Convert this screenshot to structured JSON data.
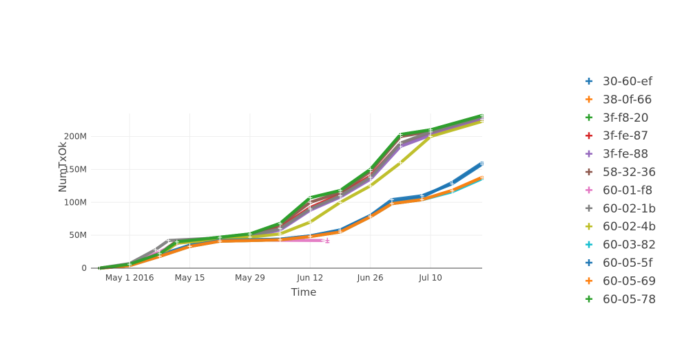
{
  "chart_data": {
    "type": "scatter",
    "xlabel": "Time",
    "ylabel": "NumTxOk",
    "x_ticks": [
      "May 1 2016",
      "May 15",
      "May 29",
      "Jun 12",
      "Jun 26",
      "Jul 10"
    ],
    "y_ticks": [
      "0",
      "50M",
      "100M",
      "150M",
      "200M"
    ],
    "xlim": [
      "2016-04-22",
      "2016-07-22"
    ],
    "ylim": [
      0,
      235000000
    ],
    "grid": true,
    "legend_position": "right",
    "series": [
      {
        "name": "30-60-ef",
        "color": "#1f77b4",
        "points": [
          [
            "2016-04-24",
            0
          ],
          [
            "2016-05-01",
            5000000
          ],
          [
            "2016-05-08",
            20000000
          ],
          [
            "2016-05-15",
            35000000
          ],
          [
            "2016-05-22",
            42000000
          ],
          [
            "2016-06-05",
            44000000
          ],
          [
            "2016-06-12",
            49000000
          ],
          [
            "2016-06-19",
            58000000
          ],
          [
            "2016-06-26",
            80000000
          ],
          [
            "2016-07-01",
            100000000
          ],
          [
            "2016-07-08",
            108000000
          ],
          [
            "2016-07-15",
            130000000
          ],
          [
            "2016-07-22",
            160000000
          ]
        ]
      },
      {
        "name": "38-0f-66",
        "color": "#ff7f0e",
        "points": [
          [
            "2016-04-24",
            0
          ],
          [
            "2016-05-01",
            4000000
          ],
          [
            "2016-05-08",
            18000000
          ],
          [
            "2016-05-15",
            33000000
          ],
          [
            "2016-05-22",
            41000000
          ],
          [
            "2016-06-05",
            43000000
          ],
          [
            "2016-06-12",
            48000000
          ],
          [
            "2016-06-19",
            55000000
          ],
          [
            "2016-06-26",
            78000000
          ],
          [
            "2016-07-01",
            98000000
          ],
          [
            "2016-07-08",
            104000000
          ],
          [
            "2016-07-15",
            118000000
          ],
          [
            "2016-07-22",
            138000000
          ]
        ]
      },
      {
        "name": "3f-f8-20",
        "color": "#2ca02c",
        "points": [
          [
            "2016-04-24",
            0
          ],
          [
            "2016-05-01",
            6000000
          ],
          [
            "2016-05-08",
            22000000
          ],
          [
            "2016-05-12",
            40000000
          ],
          [
            "2016-05-22",
            47000000
          ],
          [
            "2016-05-29",
            52000000
          ],
          [
            "2016-06-05",
            68000000
          ],
          [
            "2016-06-12",
            107000000
          ],
          [
            "2016-06-19",
            118000000
          ],
          [
            "2016-06-26",
            150000000
          ],
          [
            "2016-07-03",
            203000000
          ],
          [
            "2016-07-10",
            210000000
          ],
          [
            "2016-07-22",
            232000000
          ]
        ]
      },
      {
        "name": "3f-fe-87",
        "color": "#d62728",
        "points": [
          [
            "2016-04-24",
            0
          ],
          [
            "2016-05-01",
            6000000
          ],
          [
            "2016-05-08",
            22000000
          ],
          [
            "2016-05-12",
            40000000
          ],
          [
            "2016-05-22",
            46000000
          ],
          [
            "2016-05-29",
            50000000
          ],
          [
            "2016-06-05",
            62000000
          ],
          [
            "2016-06-12",
            92000000
          ],
          [
            "2016-06-19",
            112000000
          ],
          [
            "2016-06-26",
            140000000
          ],
          [
            "2016-07-03",
            190000000
          ],
          [
            "2016-07-10",
            205000000
          ],
          [
            "2016-07-22",
            228000000
          ]
        ]
      },
      {
        "name": "3f-fe-88",
        "color": "#9467bd",
        "points": [
          [
            "2016-04-24",
            0
          ],
          [
            "2016-05-01",
            5000000
          ],
          [
            "2016-05-08",
            20000000
          ],
          [
            "2016-05-12",
            38000000
          ],
          [
            "2016-05-22",
            45000000
          ],
          [
            "2016-05-29",
            48000000
          ],
          [
            "2016-06-05",
            58000000
          ],
          [
            "2016-06-12",
            88000000
          ],
          [
            "2016-06-19",
            108000000
          ],
          [
            "2016-06-26",
            135000000
          ],
          [
            "2016-07-03",
            185000000
          ],
          [
            "2016-07-10",
            202000000
          ],
          [
            "2016-07-22",
            226000000
          ]
        ]
      },
      {
        "name": "58-32-36",
        "color": "#8c564b",
        "points": [
          [
            "2016-04-24",
            0
          ],
          [
            "2016-05-01",
            6000000
          ],
          [
            "2016-05-08",
            23000000
          ],
          [
            "2016-05-12",
            41000000
          ],
          [
            "2016-05-22",
            46000000
          ],
          [
            "2016-05-29",
            51000000
          ],
          [
            "2016-06-05",
            66000000
          ],
          [
            "2016-06-12",
            100000000
          ],
          [
            "2016-06-19",
            115000000
          ],
          [
            "2016-06-26",
            147000000
          ],
          [
            "2016-07-03",
            200000000
          ],
          [
            "2016-07-10",
            208000000
          ],
          [
            "2016-07-22",
            231000000
          ]
        ]
      },
      {
        "name": "60-01-f8",
        "color": "#e377c2",
        "points": [
          [
            "2016-04-24",
            0
          ],
          [
            "2016-05-01",
            5000000
          ],
          [
            "2016-05-08",
            25000000
          ],
          [
            "2016-05-13",
            40000000
          ],
          [
            "2016-05-18",
            43000000
          ],
          [
            "2016-06-15",
            42000000
          ]
        ]
      },
      {
        "name": "60-02-1b",
        "color": "#7f7f7f",
        "points": [
          [
            "2016-04-24",
            0
          ],
          [
            "2016-05-01",
            7000000
          ],
          [
            "2016-05-07",
            28000000
          ],
          [
            "2016-05-10",
            42000000
          ],
          [
            "2016-05-22",
            46000000
          ],
          [
            "2016-05-29",
            49000000
          ],
          [
            "2016-06-05",
            60000000
          ],
          [
            "2016-06-12",
            90000000
          ],
          [
            "2016-06-19",
            110000000
          ],
          [
            "2016-06-26",
            138000000
          ],
          [
            "2016-07-03",
            190000000
          ],
          [
            "2016-07-10",
            207000000
          ],
          [
            "2016-07-22",
            230000000
          ]
        ]
      },
      {
        "name": "60-02-4b",
        "color": "#bcbd22",
        "points": [
          [
            "2016-04-24",
            0
          ],
          [
            "2016-05-01",
            5000000
          ],
          [
            "2016-05-08",
            20000000
          ],
          [
            "2016-05-12",
            38000000
          ],
          [
            "2016-05-22",
            44000000
          ],
          [
            "2016-05-29",
            47000000
          ],
          [
            "2016-06-05",
            52000000
          ],
          [
            "2016-06-12",
            70000000
          ],
          [
            "2016-06-19",
            100000000
          ],
          [
            "2016-06-26",
            125000000
          ],
          [
            "2016-07-03",
            160000000
          ],
          [
            "2016-07-10",
            200000000
          ],
          [
            "2016-07-22",
            223000000
          ]
        ]
      },
      {
        "name": "60-03-82",
        "color": "#17becf",
        "points": [
          [
            "2016-04-24",
            0
          ],
          [
            "2016-05-01",
            4000000
          ],
          [
            "2016-05-08",
            18000000
          ],
          [
            "2016-05-15",
            33000000
          ],
          [
            "2016-05-22",
            41000000
          ],
          [
            "2016-06-05",
            43000000
          ],
          [
            "2016-06-12",
            48000000
          ],
          [
            "2016-06-19",
            55000000
          ],
          [
            "2016-06-26",
            78000000
          ],
          [
            "2016-07-01",
            98000000
          ],
          [
            "2016-07-08",
            104000000
          ],
          [
            "2016-07-15",
            116000000
          ],
          [
            "2016-07-22",
            136000000
          ]
        ]
      },
      {
        "name": "60-05-5f",
        "color": "#1f77b4",
        "points": [
          [
            "2016-04-24",
            0
          ],
          [
            "2016-05-01",
            5000000
          ],
          [
            "2016-05-08",
            19000000
          ],
          [
            "2016-05-15",
            34000000
          ],
          [
            "2016-05-22",
            42000000
          ],
          [
            "2016-06-05",
            44000000
          ],
          [
            "2016-06-12",
            49000000
          ],
          [
            "2016-06-19",
            58000000
          ],
          [
            "2016-06-26",
            80000000
          ],
          [
            "2016-07-01",
            104000000
          ],
          [
            "2016-07-08",
            110000000
          ],
          [
            "2016-07-15",
            128000000
          ],
          [
            "2016-07-22",
            158000000
          ]
        ]
      },
      {
        "name": "60-05-69",
        "color": "#ff7f0e",
        "points": [
          [
            "2016-04-24",
            0
          ],
          [
            "2016-05-01",
            4000000
          ],
          [
            "2016-05-08",
            18000000
          ],
          [
            "2016-05-15",
            33000000
          ],
          [
            "2016-05-22",
            41000000
          ],
          [
            "2016-06-05",
            43000000
          ],
          [
            "2016-06-12",
            48000000
          ],
          [
            "2016-06-19",
            55000000
          ],
          [
            "2016-06-26",
            78000000
          ],
          [
            "2016-07-01",
            98000000
          ],
          [
            "2016-07-08",
            104000000
          ],
          [
            "2016-07-15",
            118000000
          ],
          [
            "2016-07-22",
            138000000
          ]
        ]
      },
      {
        "name": "60-05-78",
        "color": "#2ca02c",
        "points": [
          [
            "2016-04-24",
            0
          ],
          [
            "2016-05-01",
            6000000
          ],
          [
            "2016-05-08",
            22000000
          ],
          [
            "2016-05-12",
            40000000
          ],
          [
            "2016-05-22",
            47000000
          ],
          [
            "2016-05-29",
            52000000
          ],
          [
            "2016-06-05",
            68000000
          ],
          [
            "2016-06-12",
            107000000
          ],
          [
            "2016-06-19",
            118000000
          ],
          [
            "2016-06-26",
            150000000
          ],
          [
            "2016-07-03",
            203000000
          ],
          [
            "2016-07-10",
            210000000
          ],
          [
            "2016-07-22",
            232000000
          ]
        ]
      }
    ]
  }
}
